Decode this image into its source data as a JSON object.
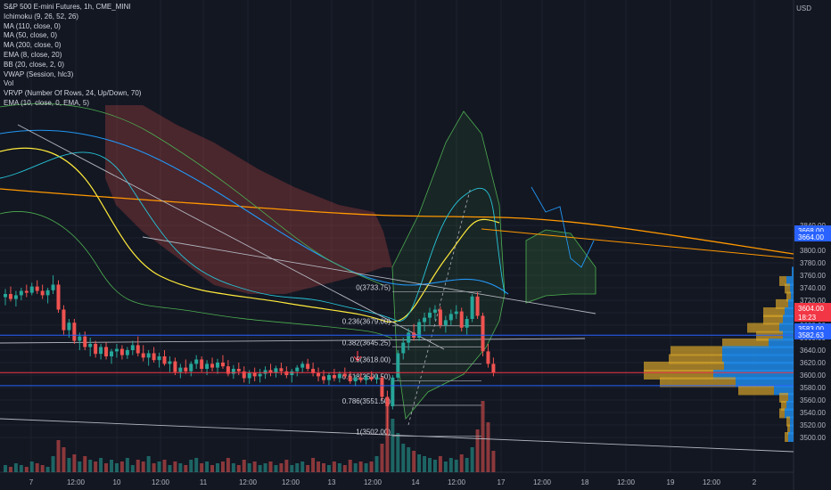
{
  "header": {
    "legend": [
      "S&P 500 E-mini Futures, 1h, CME_MINI",
      "Ichimoku (9, 26, 52, 26)",
      "MA (110, close, 0)",
      "MA (50, close, 0)",
      "MA (200, close, 0)",
      "EMA (8, close, 20)",
      "BB (20, close, 2, 0)",
      "VWAP (Session, hlc3)",
      "Vol",
      "VRVP (Number Of Rows, 24, Up/Down, 70)",
      "EMA (10, close, 0, EMA, 5)"
    ],
    "currency": "USD"
  },
  "chart_data": {
    "type": "candlestick",
    "symbol": "S&P 500 E-mini Futures",
    "interval": "1h",
    "exchange": "CME_MINI",
    "y_axis": {
      "range": [
        3480,
        3850
      ],
      "ticks": [
        3500,
        3520,
        3540,
        3560,
        3580,
        3600,
        3620,
        3640,
        3660,
        3680,
        3700,
        3720,
        3740,
        3760,
        3780,
        3800,
        3820,
        3840
      ]
    },
    "x_axis": {
      "ticks": [
        "7",
        "12:00",
        "10",
        "12:00",
        "11",
        "12:00",
        "12:00",
        "13",
        "12:00",
        "14",
        "12:00",
        "17",
        "12:00",
        "18",
        "12:00",
        "19",
        "12:00",
        "2"
      ]
    },
    "price_labels": [
      {
        "value": "3668.00",
        "color": "#2962ff"
      },
      {
        "value": "3664.00",
        "color": "#2962ff"
      },
      {
        "value": "3604.00",
        "color": "#f23645"
      },
      {
        "value": "18:23",
        "color": "#f23645"
      },
      {
        "value": "3583.00",
        "color": "#2962ff"
      },
      {
        "value": "3582.63",
        "color": "#2962ff"
      }
    ],
    "fibonacci": [
      {
        "label": "0(3733.75)",
        "price": 3733.75
      },
      {
        "label": "0.236(3679.00)",
        "price": 3679.0
      },
      {
        "label": "0.382(3645.25)",
        "price": 3645.25
      },
      {
        "label": "0.5(3618.00)",
        "price": 3618.0
      },
      {
        "label": "0.618(3590.50)",
        "price": 3590.5
      },
      {
        "label": "0.786(3551.50)",
        "price": 3551.5
      },
      {
        "label": "1(3502.00)",
        "price": 3502.0
      }
    ],
    "ohlc": [
      [
        3725,
        3738,
        3712,
        3730
      ],
      [
        3730,
        3742,
        3718,
        3722
      ],
      [
        3722,
        3735,
        3710,
        3728
      ],
      [
        3728,
        3740,
        3720,
        3735
      ],
      [
        3735,
        3745,
        3725,
        3732
      ],
      [
        3732,
        3748,
        3728,
        3742
      ],
      [
        3742,
        3752,
        3730,
        3735
      ],
      [
        3735,
        3745,
        3722,
        3728
      ],
      [
        3728,
        3740,
        3715,
        3736
      ],
      [
        3736,
        3760,
        3730,
        3745
      ],
      [
        3745,
        3752,
        3700,
        3705
      ],
      [
        3705,
        3712,
        3665,
        3672
      ],
      [
        3672,
        3690,
        3660,
        3684
      ],
      [
        3684,
        3690,
        3650,
        3655
      ],
      [
        3655,
        3668,
        3640,
        3662
      ],
      [
        3662,
        3670,
        3640,
        3645
      ],
      [
        3645,
        3660,
        3630,
        3650
      ],
      [
        3650,
        3655,
        3628,
        3634
      ],
      [
        3634,
        3650,
        3625,
        3645
      ],
      [
        3645,
        3652,
        3625,
        3630
      ],
      [
        3630,
        3642,
        3618,
        3638
      ],
      [
        3638,
        3650,
        3628,
        3642
      ],
      [
        3642,
        3648,
        3625,
        3632
      ],
      [
        3632,
        3645,
        3626,
        3640
      ],
      [
        3640,
        3655,
        3632,
        3648
      ],
      [
        3648,
        3662,
        3630,
        3635
      ],
      [
        3635,
        3648,
        3622,
        3628
      ],
      [
        3628,
        3640,
        3615,
        3635
      ],
      [
        3635,
        3645,
        3620,
        3624
      ],
      [
        3624,
        3636,
        3612,
        3630
      ],
      [
        3630,
        3640,
        3615,
        3618
      ],
      [
        3618,
        3630,
        3605,
        3622
      ],
      [
        3622,
        3628,
        3600,
        3605
      ],
      [
        3605,
        3618,
        3595,
        3612
      ],
      [
        3612,
        3625,
        3602,
        3606
      ],
      [
        3606,
        3622,
        3598,
        3618
      ],
      [
        3618,
        3632,
        3610,
        3625
      ],
      [
        3625,
        3630,
        3605,
        3610
      ],
      [
        3610,
        3624,
        3600,
        3618
      ],
      [
        3618,
        3628,
        3606,
        3612
      ],
      [
        3612,
        3626,
        3602,
        3620
      ],
      [
        3620,
        3632,
        3610,
        3614
      ],
      [
        3614,
        3624,
        3598,
        3602
      ],
      [
        3602,
        3616,
        3594,
        3610
      ],
      [
        3610,
        3620,
        3600,
        3606
      ],
      [
        3606,
        3614,
        3588,
        3595
      ],
      [
        3595,
        3608,
        3586,
        3604
      ],
      [
        3604,
        3612,
        3590,
        3598
      ],
      [
        3598,
        3610,
        3588,
        3602
      ],
      [
        3602,
        3614,
        3594,
        3608
      ],
      [
        3608,
        3618,
        3598,
        3604
      ],
      [
        3604,
        3615,
        3596,
        3611
      ],
      [
        3611,
        3620,
        3600,
        3606
      ],
      [
        3606,
        3614,
        3595,
        3600
      ],
      [
        3600,
        3610,
        3588,
        3606
      ],
      [
        3606,
        3616,
        3598,
        3612
      ],
      [
        3612,
        3622,
        3604,
        3618
      ],
      [
        3618,
        3626,
        3606,
        3610
      ],
      [
        3610,
        3620,
        3598,
        3603
      ],
      [
        3603,
        3612,
        3590,
        3598
      ],
      [
        3598,
        3608,
        3586,
        3592
      ],
      [
        3592,
        3604,
        3584,
        3600
      ],
      [
        3600,
        3610,
        3590,
        3595
      ],
      [
        3595,
        3606,
        3588,
        3602
      ],
      [
        3602,
        3612,
        3594,
        3598
      ],
      [
        3598,
        3606,
        3586,
        3590
      ],
      [
        3590,
        3600,
        3582,
        3596
      ],
      [
        3596,
        3604,
        3588,
        3592
      ],
      [
        3592,
        3600,
        3585,
        3597
      ],
      [
        3597,
        3606,
        3590,
        3593
      ],
      [
        3593,
        3602,
        3586,
        3596
      ],
      [
        3596,
        3598,
        3560,
        3565
      ],
      [
        3565,
        3575,
        3503,
        3550
      ],
      [
        3550,
        3600,
        3545,
        3596
      ],
      [
        3596,
        3640,
        3590,
        3635
      ],
      [
        3635,
        3660,
        3625,
        3652
      ],
      [
        3652,
        3675,
        3640,
        3668
      ],
      [
        3668,
        3682,
        3655,
        3660
      ],
      [
        3660,
        3690,
        3655,
        3685
      ],
      [
        3685,
        3700,
        3670,
        3692
      ],
      [
        3692,
        3708,
        3680,
        3700
      ],
      [
        3700,
        3712,
        3688,
        3705
      ],
      [
        3705,
        3710,
        3675,
        3680
      ],
      [
        3680,
        3695,
        3668,
        3688
      ],
      [
        3688,
        3705,
        3680,
        3698
      ],
      [
        3698,
        3712,
        3690,
        3702
      ],
      [
        3702,
        3708,
        3670,
        3676
      ],
      [
        3676,
        3695,
        3665,
        3690
      ],
      [
        3690,
        3730,
        3685,
        3726
      ],
      [
        3726,
        3733,
        3690,
        3695
      ],
      [
        3695,
        3700,
        3630,
        3638
      ],
      [
        3638,
        3650,
        3612,
        3618
      ],
      [
        3618,
        3628,
        3598,
        3604
      ]
    ],
    "volume": [
      4,
      3,
      5,
      4,
      3,
      6,
      5,
      4,
      3,
      9,
      18,
      14,
      8,
      10,
      6,
      9,
      7,
      6,
      8,
      5,
      7,
      5,
      6,
      8,
      4,
      7,
      6,
      9,
      5,
      6,
      7,
      4,
      6,
      5,
      4,
      7,
      8,
      5,
      6,
      4,
      5,
      6,
      8,
      5,
      4,
      7,
      5,
      6,
      4,
      5,
      6,
      4,
      5,
      7,
      4,
      5,
      6,
      4,
      8,
      6,
      5,
      4,
      6,
      5,
      4,
      7,
      5,
      6,
      5,
      6,
      9,
      16,
      38,
      30,
      22,
      16,
      14,
      12,
      10,
      9,
      8,
      7,
      9,
      6,
      8,
      7,
      10,
      8,
      14,
      24,
      40,
      28,
      12
    ],
    "annotations": [
      {
        "type": "hline",
        "price": 3664.0,
        "color": "#2962ff"
      },
      {
        "type": "hline",
        "price": 3604.0,
        "color": "#f23645"
      },
      {
        "type": "hline",
        "price": 3583.0,
        "color": "#2962ff"
      }
    ],
    "colors": {
      "background": "#131722",
      "bull": "#26a69a",
      "bear": "#ef5350",
      "ma_orange": "#ff9800",
      "ma_yellow": "#ffeb3b",
      "ma_blue": "#2196f3",
      "bb": "#4caf50",
      "vrvp_up": "#1e88e5",
      "vrvp_down": "#d4a22a"
    },
    "grid": true
  }
}
